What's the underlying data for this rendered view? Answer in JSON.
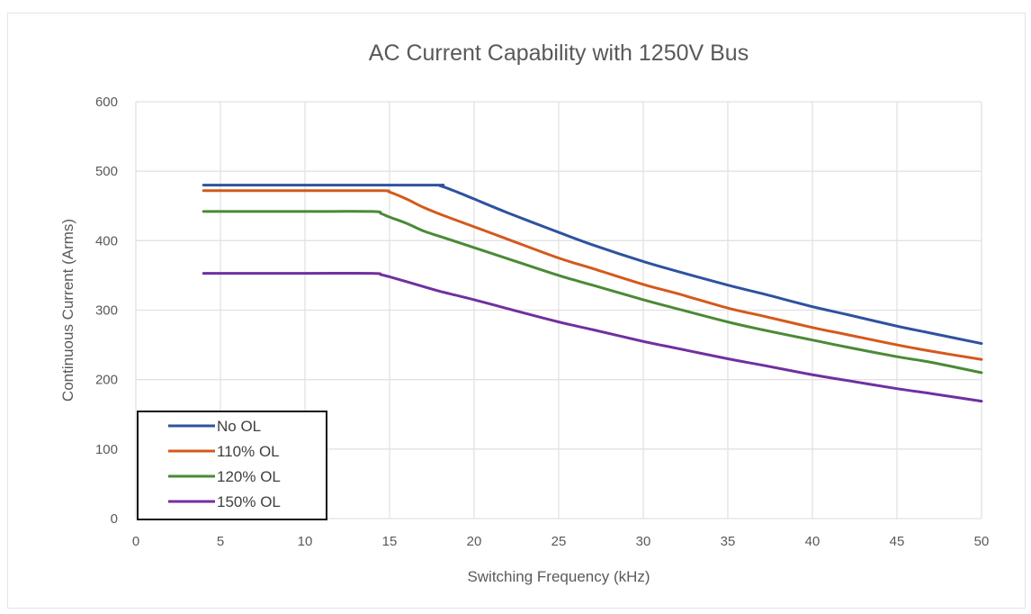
{
  "chart_data": {
    "type": "line",
    "title": "AC Current Capability with 1250V Bus",
    "xlabel": "Switching Frequency (kHz)",
    "ylabel": "Continuous Current (Arms)",
    "xlim": [
      0,
      50
    ],
    "ylim": [
      0,
      600
    ],
    "xticks": [
      0,
      5,
      10,
      15,
      20,
      25,
      30,
      35,
      40,
      45,
      50
    ],
    "yticks": [
      0,
      100,
      200,
      300,
      400,
      500,
      600
    ],
    "grid": true,
    "legend_position": "bottom-left",
    "series": [
      {
        "name": "No OL",
        "color": "#2f52a0",
        "points": [
          [
            4,
            480
          ],
          [
            10,
            480
          ],
          [
            17.5,
            480
          ],
          [
            18,
            479
          ],
          [
            19,
            470
          ],
          [
            20,
            460
          ],
          [
            22,
            440
          ],
          [
            25,
            412
          ],
          [
            27,
            394
          ],
          [
            30,
            370
          ],
          [
            32,
            356
          ],
          [
            35,
            336
          ],
          [
            37,
            324
          ],
          [
            40,
            305
          ],
          [
            42,
            294
          ],
          [
            45,
            277
          ],
          [
            47,
            267
          ],
          [
            50,
            252
          ]
        ]
      },
      {
        "name": "110% OL",
        "color": "#d35a1b",
        "points": [
          [
            4,
            472
          ],
          [
            10,
            472
          ],
          [
            14.5,
            472
          ],
          [
            15,
            470
          ],
          [
            16,
            460
          ],
          [
            17,
            448
          ],
          [
            18,
            438
          ],
          [
            20,
            420
          ],
          [
            22,
            402
          ],
          [
            25,
            375
          ],
          [
            27,
            360
          ],
          [
            30,
            337
          ],
          [
            32,
            324
          ],
          [
            35,
            303
          ],
          [
            37,
            292
          ],
          [
            40,
            275
          ],
          [
            42,
            265
          ],
          [
            45,
            250
          ],
          [
            47,
            241
          ],
          [
            50,
            229
          ]
        ]
      },
      {
        "name": "120% OL",
        "color": "#4a8a35",
        "points": [
          [
            4,
            442
          ],
          [
            10,
            442
          ],
          [
            14,
            442
          ],
          [
            14.5,
            439
          ],
          [
            15,
            434
          ],
          [
            16,
            425
          ],
          [
            17,
            414
          ],
          [
            18,
            406
          ],
          [
            20,
            390
          ],
          [
            22,
            374
          ],
          [
            25,
            350
          ],
          [
            27,
            336
          ],
          [
            30,
            315
          ],
          [
            32,
            302
          ],
          [
            35,
            283
          ],
          [
            37,
            272
          ],
          [
            40,
            257
          ],
          [
            42,
            247
          ],
          [
            45,
            233
          ],
          [
            47,
            225
          ],
          [
            50,
            210
          ]
        ]
      },
      {
        "name": "150% OL",
        "color": "#7030a0",
        "points": [
          [
            4,
            353
          ],
          [
            10,
            353
          ],
          [
            14,
            353
          ],
          [
            14.5,
            351
          ],
          [
            15,
            348
          ],
          [
            16,
            341
          ],
          [
            17,
            334
          ],
          [
            18,
            327
          ],
          [
            20,
            315
          ],
          [
            22,
            302
          ],
          [
            25,
            283
          ],
          [
            27,
            272
          ],
          [
            30,
            255
          ],
          [
            32,
            245
          ],
          [
            35,
            230
          ],
          [
            37,
            221
          ],
          [
            40,
            207
          ],
          [
            42,
            199
          ],
          [
            45,
            187
          ],
          [
            47,
            180
          ],
          [
            50,
            169
          ]
        ]
      }
    ]
  }
}
